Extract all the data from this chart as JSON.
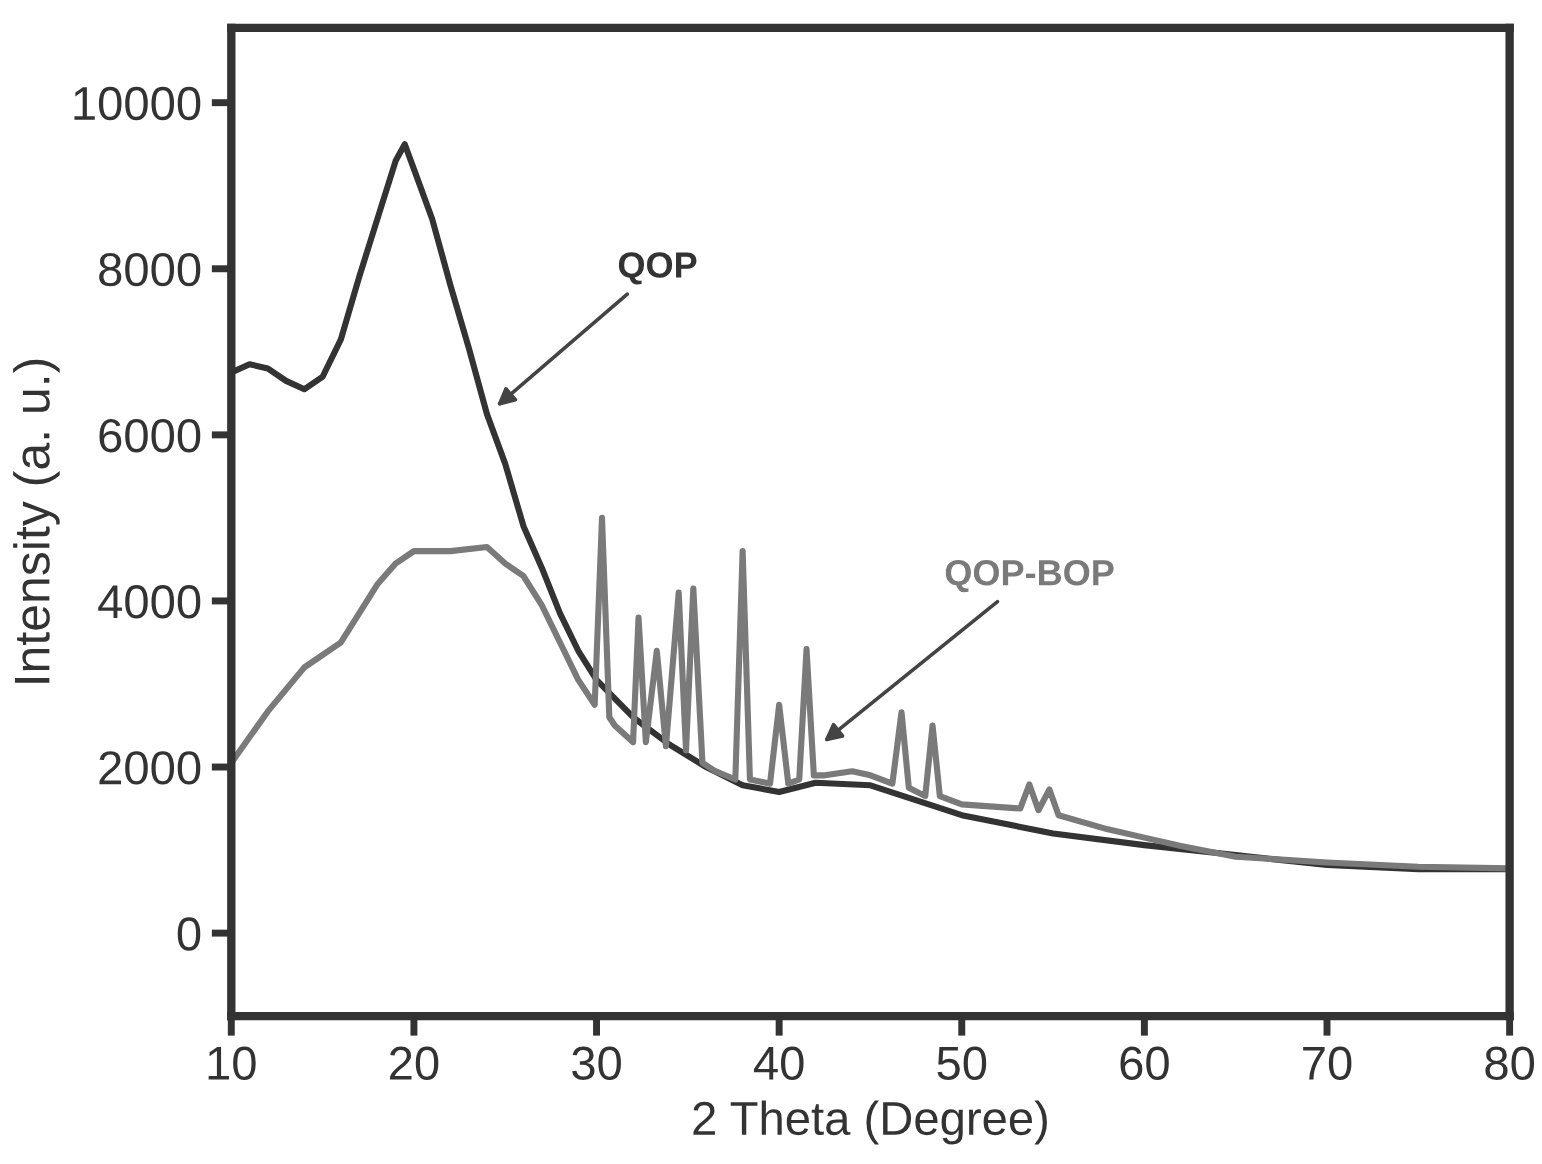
{
  "chart_data": {
    "type": "line",
    "xlabel": "2 Theta (Degree)",
    "ylabel": "Intensity (a. u.)",
    "xlim": [
      10,
      80
    ],
    "ylim": [
      -1000,
      10900
    ],
    "xticks": [
      10,
      20,
      30,
      40,
      50,
      60,
      70,
      80
    ],
    "yticks": [
      0,
      2000,
      4000,
      6000,
      8000,
      10000
    ],
    "marker": "none",
    "line_style": "solid",
    "annotations": [
      {
        "text": "QOP",
        "x": 24.3,
        "y": 6300
      },
      {
        "text": "QOP-BOP",
        "x": 42.2,
        "y": 2260
      }
    ],
    "series": [
      {
        "color": "#333333",
        "x": [
          10,
          11,
          12,
          13,
          14,
          15,
          16,
          17,
          18,
          19,
          19.5,
          20,
          21,
          22,
          23,
          24,
          25,
          26,
          27,
          28,
          29,
          30,
          32,
          34,
          36,
          38,
          40,
          42,
          45,
          50,
          55,
          60,
          65,
          70,
          75,
          80
        ],
        "values": [
          6750,
          6850,
          6800,
          6650,
          6550,
          6700,
          7150,
          7900,
          8600,
          9300,
          9500,
          9200,
          8600,
          7800,
          7050,
          6250,
          5650,
          4900,
          4400,
          3850,
          3400,
          3050,
          2600,
          2270,
          2000,
          1780,
          1700,
          1810,
          1780,
          1420,
          1200,
          1060,
          940,
          820,
          770,
          770
        ]
      },
      {
        "color": "#7a7a7a",
        "x": [
          10,
          12,
          14,
          16,
          17,
          18,
          19,
          20,
          22,
          24,
          25,
          26,
          27,
          28,
          29,
          29.9,
          30.3,
          30.7,
          31,
          32,
          32.3,
          32.7,
          33.3,
          33.8,
          34.5,
          34.9,
          35.3,
          35.8,
          36.5,
          37.6,
          38.0,
          38.4,
          39.5,
          40.0,
          40.5,
          41.1,
          41.5,
          41.9,
          42.5,
          44,
          45,
          46.2,
          46.7,
          47.1,
          48.0,
          48.4,
          48.8,
          50,
          53.2,
          53.7,
          54.2,
          54.8,
          55.3,
          58,
          60,
          62,
          65,
          70,
          75,
          80
        ],
        "values": [
          2050,
          2670,
          3200,
          3500,
          3850,
          4200,
          4450,
          4600,
          4600,
          4650,
          4450,
          4300,
          3950,
          3500,
          3050,
          2750,
          5000,
          2600,
          2500,
          2300,
          3800,
          2300,
          3400,
          2250,
          4100,
          2200,
          4150,
          2050,
          1950,
          1850,
          4600,
          1850,
          1800,
          2750,
          1800,
          1850,
          3420,
          1900,
          1900,
          1950,
          1900,
          1800,
          2660,
          1750,
          1650,
          2500,
          1650,
          1550,
          1500,
          1790,
          1480,
          1730,
          1420,
          1250,
          1150,
          1050,
          920,
          850,
          800,
          780
        ]
      }
    ]
  }
}
